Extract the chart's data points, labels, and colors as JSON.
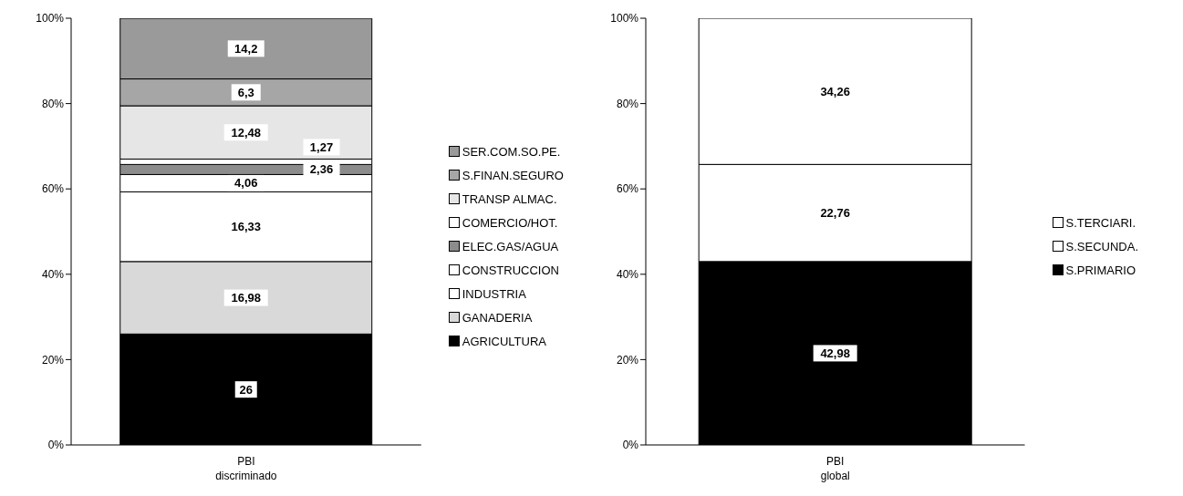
{
  "chart_data": [
    {
      "type": "bar",
      "stacked": true,
      "categories": [
        "PBI discriminado"
      ],
      "ylim": [
        0,
        100
      ],
      "yticks": [
        {
          "value": 0,
          "label": "0%"
        },
        {
          "value": 20,
          "label": "20%"
        },
        {
          "value": 40,
          "label": "40%"
        },
        {
          "value": 60,
          "label": "60%"
        },
        {
          "value": 80,
          "label": "80%"
        },
        {
          "value": 100,
          "label": "100%"
        }
      ],
      "legend": "right",
      "series": [
        {
          "name": "AGRICULTURA",
          "color": "#000000",
          "values": [
            26
          ],
          "value_labels": [
            "26"
          ]
        },
        {
          "name": "GANADERIA",
          "color": "#d9d9d9",
          "values": [
            16.98
          ],
          "value_labels": [
            "16,98"
          ]
        },
        {
          "name": "INDUSTRIA",
          "color": "#ffffff",
          "values": [
            16.33
          ],
          "value_labels": [
            "16,33"
          ]
        },
        {
          "name": "CONSTRUCCION",
          "color": "#ffffff",
          "values": [
            4.06
          ],
          "value_labels": [
            "4,06"
          ]
        },
        {
          "name": "ELEC.GAS/AGUA",
          "color": "#8c8c8c",
          "values": [
            2.36
          ],
          "value_labels": [
            "2,36"
          ]
        },
        {
          "name": "COMERCIO/HOT.",
          "color": "#ffffff",
          "values": [
            1.27
          ],
          "value_labels": [
            "1,27"
          ]
        },
        {
          "name": "TRANSP ALMAC.",
          "color": "#e6e6e6",
          "values": [
            12.48
          ],
          "value_labels": [
            "12,48"
          ]
        },
        {
          "name": "S.FINAN.SEGURO",
          "color": "#a6a6a6",
          "values": [
            6.3
          ],
          "value_labels": [
            "6,3"
          ]
        },
        {
          "name": "SER.COM.SO.PE.",
          "color": "#9a9a9a",
          "values": [
            14.2
          ],
          "value_labels": [
            "14,2"
          ]
        }
      ]
    },
    {
      "type": "bar",
      "stacked": true,
      "categories": [
        "PBI global"
      ],
      "ylim": [
        0,
        100
      ],
      "yticks": [
        {
          "value": 0,
          "label": "0%"
        },
        {
          "value": 20,
          "label": "20%"
        },
        {
          "value": 40,
          "label": "40%"
        },
        {
          "value": 60,
          "label": "60%"
        },
        {
          "value": 80,
          "label": "80%"
        },
        {
          "value": 100,
          "label": "100%"
        }
      ],
      "legend": "right",
      "series": [
        {
          "name": "S.PRIMARIO",
          "color": "#000000",
          "values": [
            42.98
          ],
          "value_labels": [
            "42,98"
          ]
        },
        {
          "name": "S.SECUNDA.",
          "color": "#ffffff",
          "values": [
            22.76
          ],
          "value_labels": [
            "22,76"
          ]
        },
        {
          "name": "S.TERCIARI.",
          "color": "#ffffff",
          "values": [
            34.26
          ],
          "value_labels": [
            "34,26"
          ]
        }
      ]
    }
  ]
}
